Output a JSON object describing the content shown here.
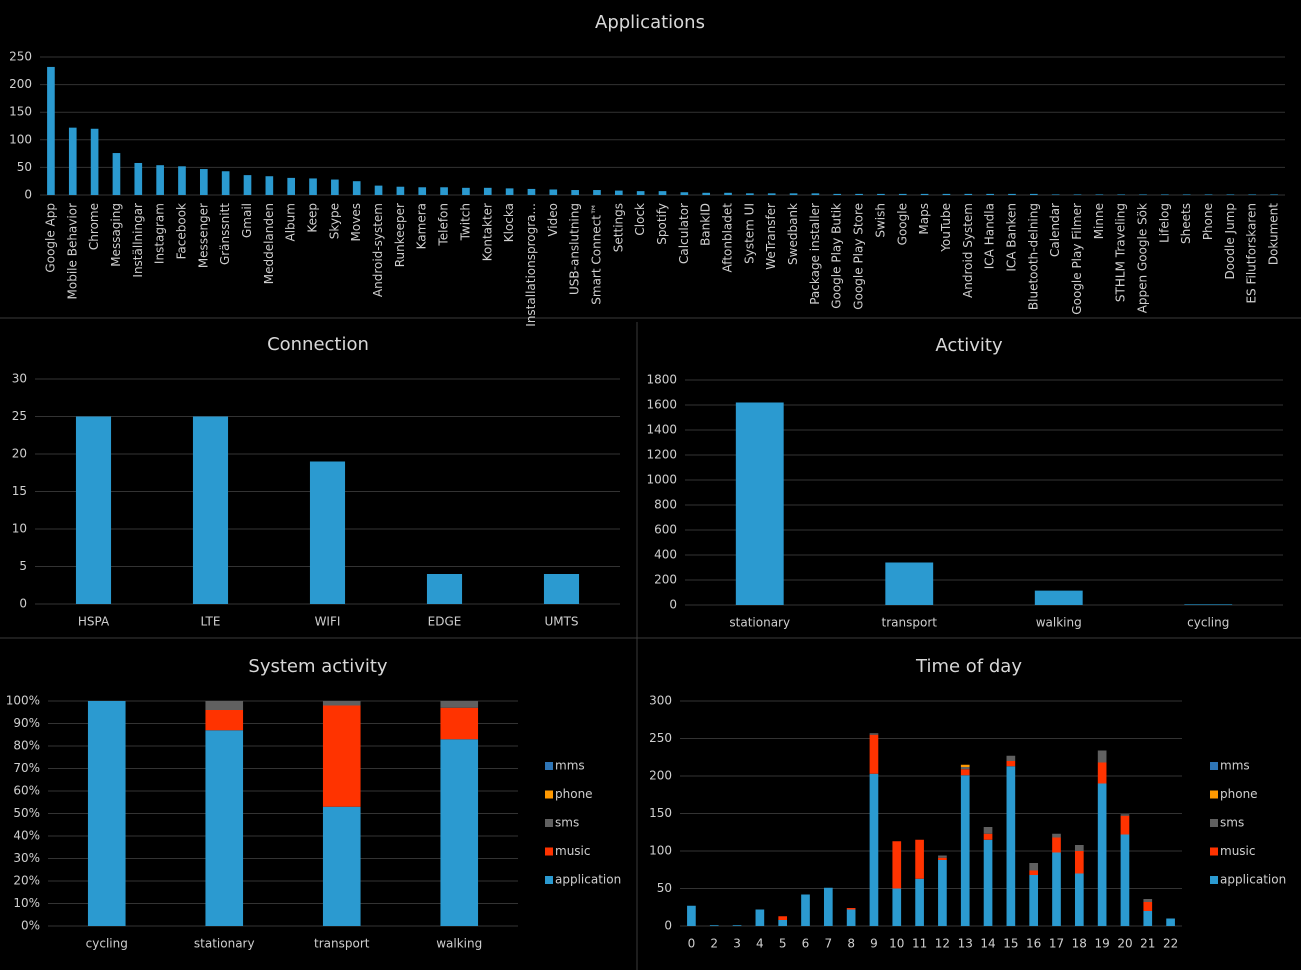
{
  "chart_data": [
    {
      "type": "bar",
      "title": "Applications",
      "categories": [
        "Google App",
        "Mobile Behavior",
        "Chrome",
        "Messaging",
        "Inställningar",
        "Instagram",
        "Facebook",
        "Messenger",
        "Gränssnitt",
        "Gmail",
        "Meddelanden",
        "Album",
        "Keep",
        "Skype",
        "Moves",
        "Android-system",
        "Runkeeper",
        "Kamera",
        "Telefon",
        "Twitch",
        "Kontakter",
        "Klocka",
        "Installationsprogra...",
        "Video",
        "USB-anslutning",
        "Smart Connect™",
        "Settings",
        "Clock",
        "Spotify",
        "Calculator",
        "BankID",
        "Aftonbladet",
        "System UI",
        "WeTransfer",
        "Swedbank",
        "Package installer",
        "Google Play Butik",
        "Google Play Store",
        "Swish",
        "Google",
        "Maps",
        "YouTube",
        "Android System",
        "ICA Handla",
        "ICA Banken",
        "Bluetooth-delning",
        "Calendar",
        "Google Play Filmer",
        "Minne",
        "STHLM Traveling",
        "Appen Google Sök",
        "Lifelog",
        "Sheets",
        "Phone",
        "Doodle Jump",
        "ES Filutforskaren",
        "Dokument"
      ],
      "values": [
        232,
        122,
        120,
        76,
        58,
        54,
        52,
        47,
        43,
        36,
        34,
        31,
        30,
        28,
        25,
        17,
        15,
        14,
        14,
        13,
        13,
        12,
        11,
        10,
        9,
        9,
        8,
        7,
        7,
        5,
        4,
        4,
        3,
        3,
        3,
        3,
        2,
        2,
        2,
        2,
        2,
        2,
        2,
        2,
        2,
        2,
        1,
        1,
        1,
        1,
        1,
        1,
        1,
        1,
        1,
        1,
        1
      ],
      "color": "#2b9ad0",
      "ylim": [
        0,
        250
      ],
      "yticks": [
        0,
        50,
        100,
        150,
        200,
        250
      ],
      "grid": true
    },
    {
      "type": "bar",
      "title": "Connection",
      "categories": [
        "HSPA",
        "LTE",
        "WIFI",
        "EDGE",
        "UMTS"
      ],
      "values": [
        25,
        25,
        19,
        4,
        4
      ],
      "color": "#2b9ad0",
      "ylim": [
        0,
        30
      ],
      "yticks": [
        0,
        5,
        10,
        15,
        20,
        25,
        30
      ],
      "grid": true
    },
    {
      "type": "bar",
      "title": "Activity",
      "categories": [
        "stationary",
        "transport",
        "walking",
        "cycling"
      ],
      "values": [
        1620,
        340,
        115,
        5
      ],
      "color": "#2b9ad0",
      "ylim": [
        0,
        1800
      ],
      "yticks": [
        0,
        200,
        400,
        600,
        800,
        1000,
        1200,
        1400,
        1600,
        1800
      ],
      "grid": true
    },
    {
      "type": "bar",
      "stacked": true,
      "title": "System activity",
      "categories": [
        "cycling",
        "stationary",
        "transport",
        "walking"
      ],
      "series": [
        {
          "name": "application",
          "color": "#2b9ad0",
          "values": [
            100,
            87,
            53,
            83
          ]
        },
        {
          "name": "music",
          "color": "#ff3300",
          "values": [
            0,
            9,
            45,
            14
          ]
        },
        {
          "name": "sms",
          "color": "#606060",
          "values": [
            0,
            4,
            2,
            3
          ]
        },
        {
          "name": "phone",
          "color": "#ff9900",
          "values": [
            0,
            0,
            0,
            0
          ]
        },
        {
          "name": "mms",
          "color": "#2e75b6",
          "values": [
            0,
            0,
            0,
            0
          ]
        }
      ],
      "ylim": [
        0,
        100
      ],
      "yticks": [
        {
          "value": 0,
          "label": "0%"
        },
        {
          "value": 10,
          "label": "10%"
        },
        {
          "value": 20,
          "label": "20%"
        },
        {
          "value": 30,
          "label": "30%"
        },
        {
          "value": 40,
          "label": "40%"
        },
        {
          "value": 50,
          "label": "50%"
        },
        {
          "value": 60,
          "label": "60%"
        },
        {
          "value": 70,
          "label": "70%"
        },
        {
          "value": 80,
          "label": "80%"
        },
        {
          "value": 90,
          "label": "90%"
        },
        {
          "value": 100,
          "label": "100%"
        }
      ],
      "grid": true,
      "legend": "right"
    },
    {
      "type": "bar",
      "stacked": true,
      "title": "Time of day",
      "categories": [
        "0",
        "2",
        "3",
        "4",
        "5",
        "6",
        "7",
        "8",
        "9",
        "10",
        "11",
        "12",
        "13",
        "14",
        "15",
        "16",
        "17",
        "18",
        "19",
        "20",
        "21",
        "22"
      ],
      "series": [
        {
          "name": "application",
          "color": "#2b9ad0",
          "values": [
            27,
            1,
            1,
            22,
            8,
            42,
            51,
            22,
            203,
            50,
            63,
            88,
            201,
            115,
            213,
            68,
            98,
            70,
            190,
            122,
            20,
            10
          ]
        },
        {
          "name": "music",
          "color": "#ff3300",
          "values": [
            0,
            0,
            0,
            0,
            5,
            0,
            0,
            2,
            52,
            63,
            52,
            3,
            8,
            8,
            7,
            6,
            20,
            30,
            28,
            25,
            12,
            0
          ]
        },
        {
          "name": "sms",
          "color": "#606060",
          "values": [
            0,
            0,
            0,
            0,
            0,
            0,
            0,
            0,
            2,
            0,
            0,
            3,
            3,
            9,
            7,
            10,
            5,
            8,
            16,
            2,
            4,
            0
          ]
        },
        {
          "name": "phone",
          "color": "#ff9900",
          "values": [
            0,
            0,
            0,
            0,
            0,
            0,
            0,
            0,
            0,
            0,
            0,
            0,
            3,
            0,
            0,
            0,
            0,
            0,
            0,
            0,
            0,
            0
          ]
        },
        {
          "name": "mms",
          "color": "#2e75b6",
          "values": [
            0,
            0,
            0,
            0,
            0,
            0,
            0,
            0,
            0,
            0,
            0,
            0,
            0,
            0,
            0,
            0,
            0,
            0,
            0,
            0,
            0,
            0
          ]
        }
      ],
      "ylim": [
        0,
        300
      ],
      "yticks": [
        0,
        50,
        100,
        150,
        200,
        250,
        300
      ],
      "grid": true,
      "legend": "right"
    }
  ]
}
